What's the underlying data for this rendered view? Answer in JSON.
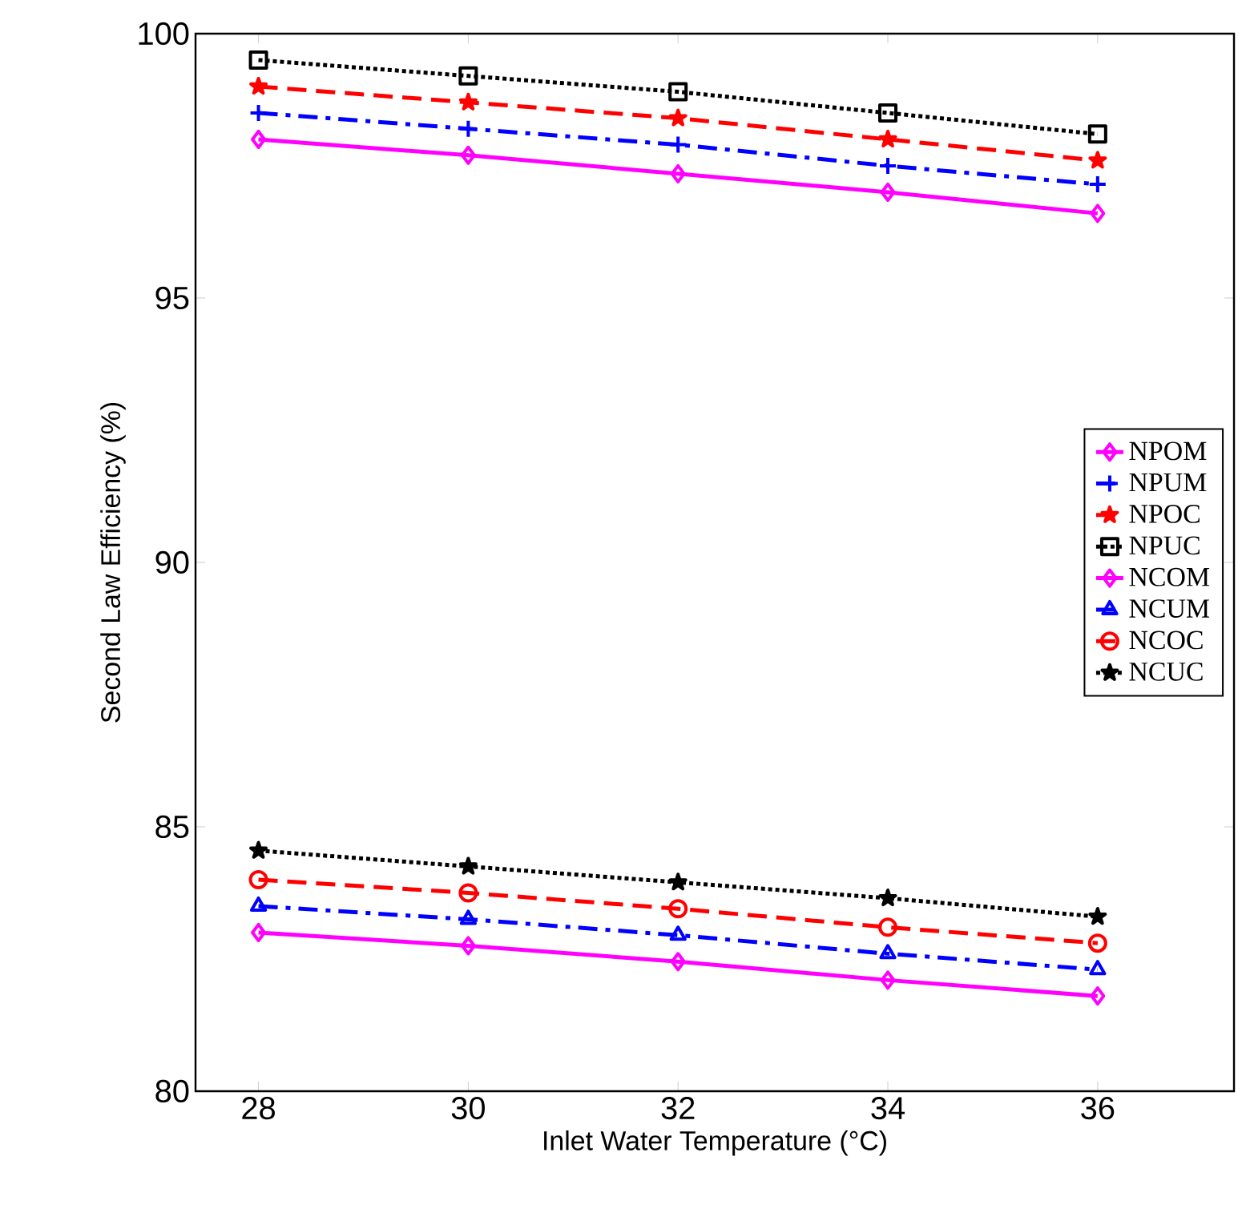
{
  "chart_data": {
    "type": "line",
    "xlabel": "Inlet  Water Temperature (°C)",
    "ylabel": "Second Law Efficiency (%)",
    "x": [
      28,
      30,
      32,
      34,
      36
    ],
    "xlim": [
      27.4,
      37.3
    ],
    "xticks": [
      28,
      30,
      32,
      34,
      36
    ],
    "ylim": [
      80,
      100
    ],
    "yticks": [
      80,
      85,
      90,
      95,
      100
    ],
    "grid": false,
    "legend": "right",
    "series": [
      {
        "name": "NPOM",
        "color": "#ff00ff",
        "marker": "diamond",
        "line_style": "solid",
        "values": [
          98.0,
          97.7,
          97.35,
          97.0,
          96.6
        ]
      },
      {
        "name": "NPUM",
        "color": "#0000ff",
        "marker": "cross",
        "line_style": "dashdot",
        "values": [
          98.5,
          98.2,
          97.9,
          97.5,
          97.15
        ]
      },
      {
        "name": "NPOC",
        "color": "#ff0000",
        "marker": "star",
        "line_style": "dashed",
        "values": [
          99.0,
          98.7,
          98.4,
          98.0,
          97.6
        ]
      },
      {
        "name": "NPUC",
        "color": "#000000",
        "marker": "square",
        "line_style": "dotted",
        "values": [
          99.5,
          99.2,
          98.9,
          98.5,
          98.1
        ]
      },
      {
        "name": "NCOM",
        "color": "#ff00ff",
        "marker": "diamond",
        "line_style": "solid",
        "values": [
          83.0,
          82.75,
          82.45,
          82.1,
          81.8
        ]
      },
      {
        "name": "NCUM",
        "color": "#0000ff",
        "marker": "triangle",
        "line_style": "dashdot",
        "values": [
          83.5,
          83.25,
          82.95,
          82.6,
          82.3
        ]
      },
      {
        "name": "NCOC",
        "color": "#ff0000",
        "marker": "circle",
        "line_style": "dashed",
        "values": [
          84.0,
          83.75,
          83.45,
          83.1,
          82.8
        ]
      },
      {
        "name": "NCUC",
        "color": "#000000",
        "marker": "star",
        "line_style": "dotted",
        "values": [
          84.55,
          84.25,
          83.95,
          83.65,
          83.3
        ]
      }
    ]
  }
}
